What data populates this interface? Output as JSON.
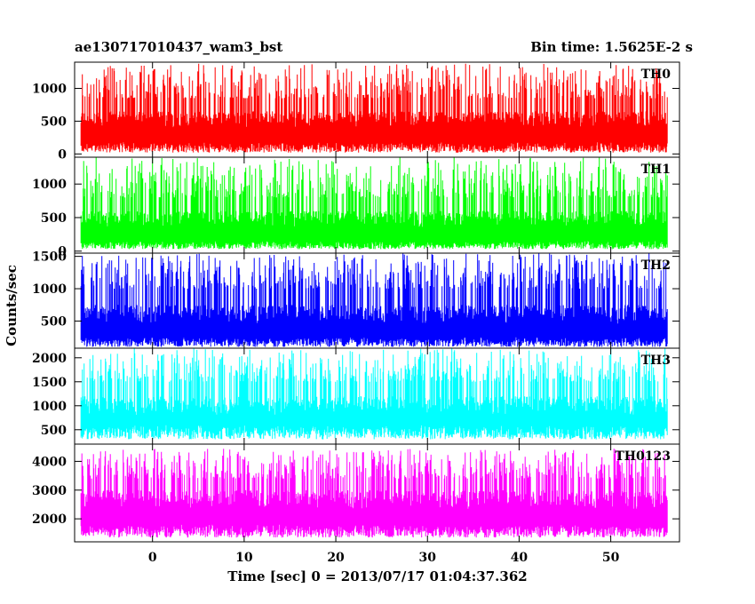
{
  "chart_data": {
    "type": "line",
    "title_left": "ae130717010437_wam3_bst",
    "title_right": "Bin time: 1.5625E-2 s",
    "xlabel": "Time [sec] 0 = 2013/07/17 01:04:37.362",
    "ylabel": "Counts/sec",
    "xlim": [
      -8.5,
      57.5
    ],
    "x_ticks": [
      0,
      10,
      20,
      30,
      40,
      50
    ],
    "x_data_range": [
      -7.8,
      56.2
    ],
    "bin_time": 0.015625,
    "panels": [
      {
        "name": "TH0",
        "color": "#ff0000",
        "ylim": [
          -50,
          1400
        ],
        "y_ticks": [
          0,
          500,
          1000
        ],
        "baseline_low": [
          20,
          180
        ],
        "center": [
          400,
          650
        ],
        "peak_high": [
          850,
          1380
        ]
      },
      {
        "name": "TH1",
        "color": "#00ff00",
        "ylim": [
          -30,
          1400
        ],
        "y_ticks": [
          0,
          500,
          1000
        ],
        "baseline_low": [
          30,
          150
        ],
        "center": [
          350,
          600
        ],
        "peak_high": [
          800,
          1400
        ]
      },
      {
        "name": "TH2",
        "color": "#0000ff",
        "ylim": [
          80,
          1550
        ],
        "y_ticks": [
          500,
          1000,
          1500
        ],
        "baseline_low": [
          100,
          250
        ],
        "center": [
          450,
          750
        ],
        "peak_high": [
          1000,
          1550
        ]
      },
      {
        "name": "TH3",
        "color": "#00ffff",
        "ylim": [
          200,
          2200
        ],
        "y_ticks": [
          500,
          1000,
          1500,
          2000
        ],
        "baseline_low": [
          300,
          600
        ],
        "center": [
          800,
          1200
        ],
        "peak_high": [
          1500,
          2200
        ]
      },
      {
        "name": "TH0123",
        "color": "#ff00ff",
        "ylim": [
          1200,
          4600
        ],
        "y_ticks": [
          2000,
          3000,
          4000
        ],
        "baseline_low": [
          1350,
          1800
        ],
        "center": [
          2300,
          3000
        ],
        "peak_high": [
          3400,
          4450
        ]
      }
    ]
  }
}
